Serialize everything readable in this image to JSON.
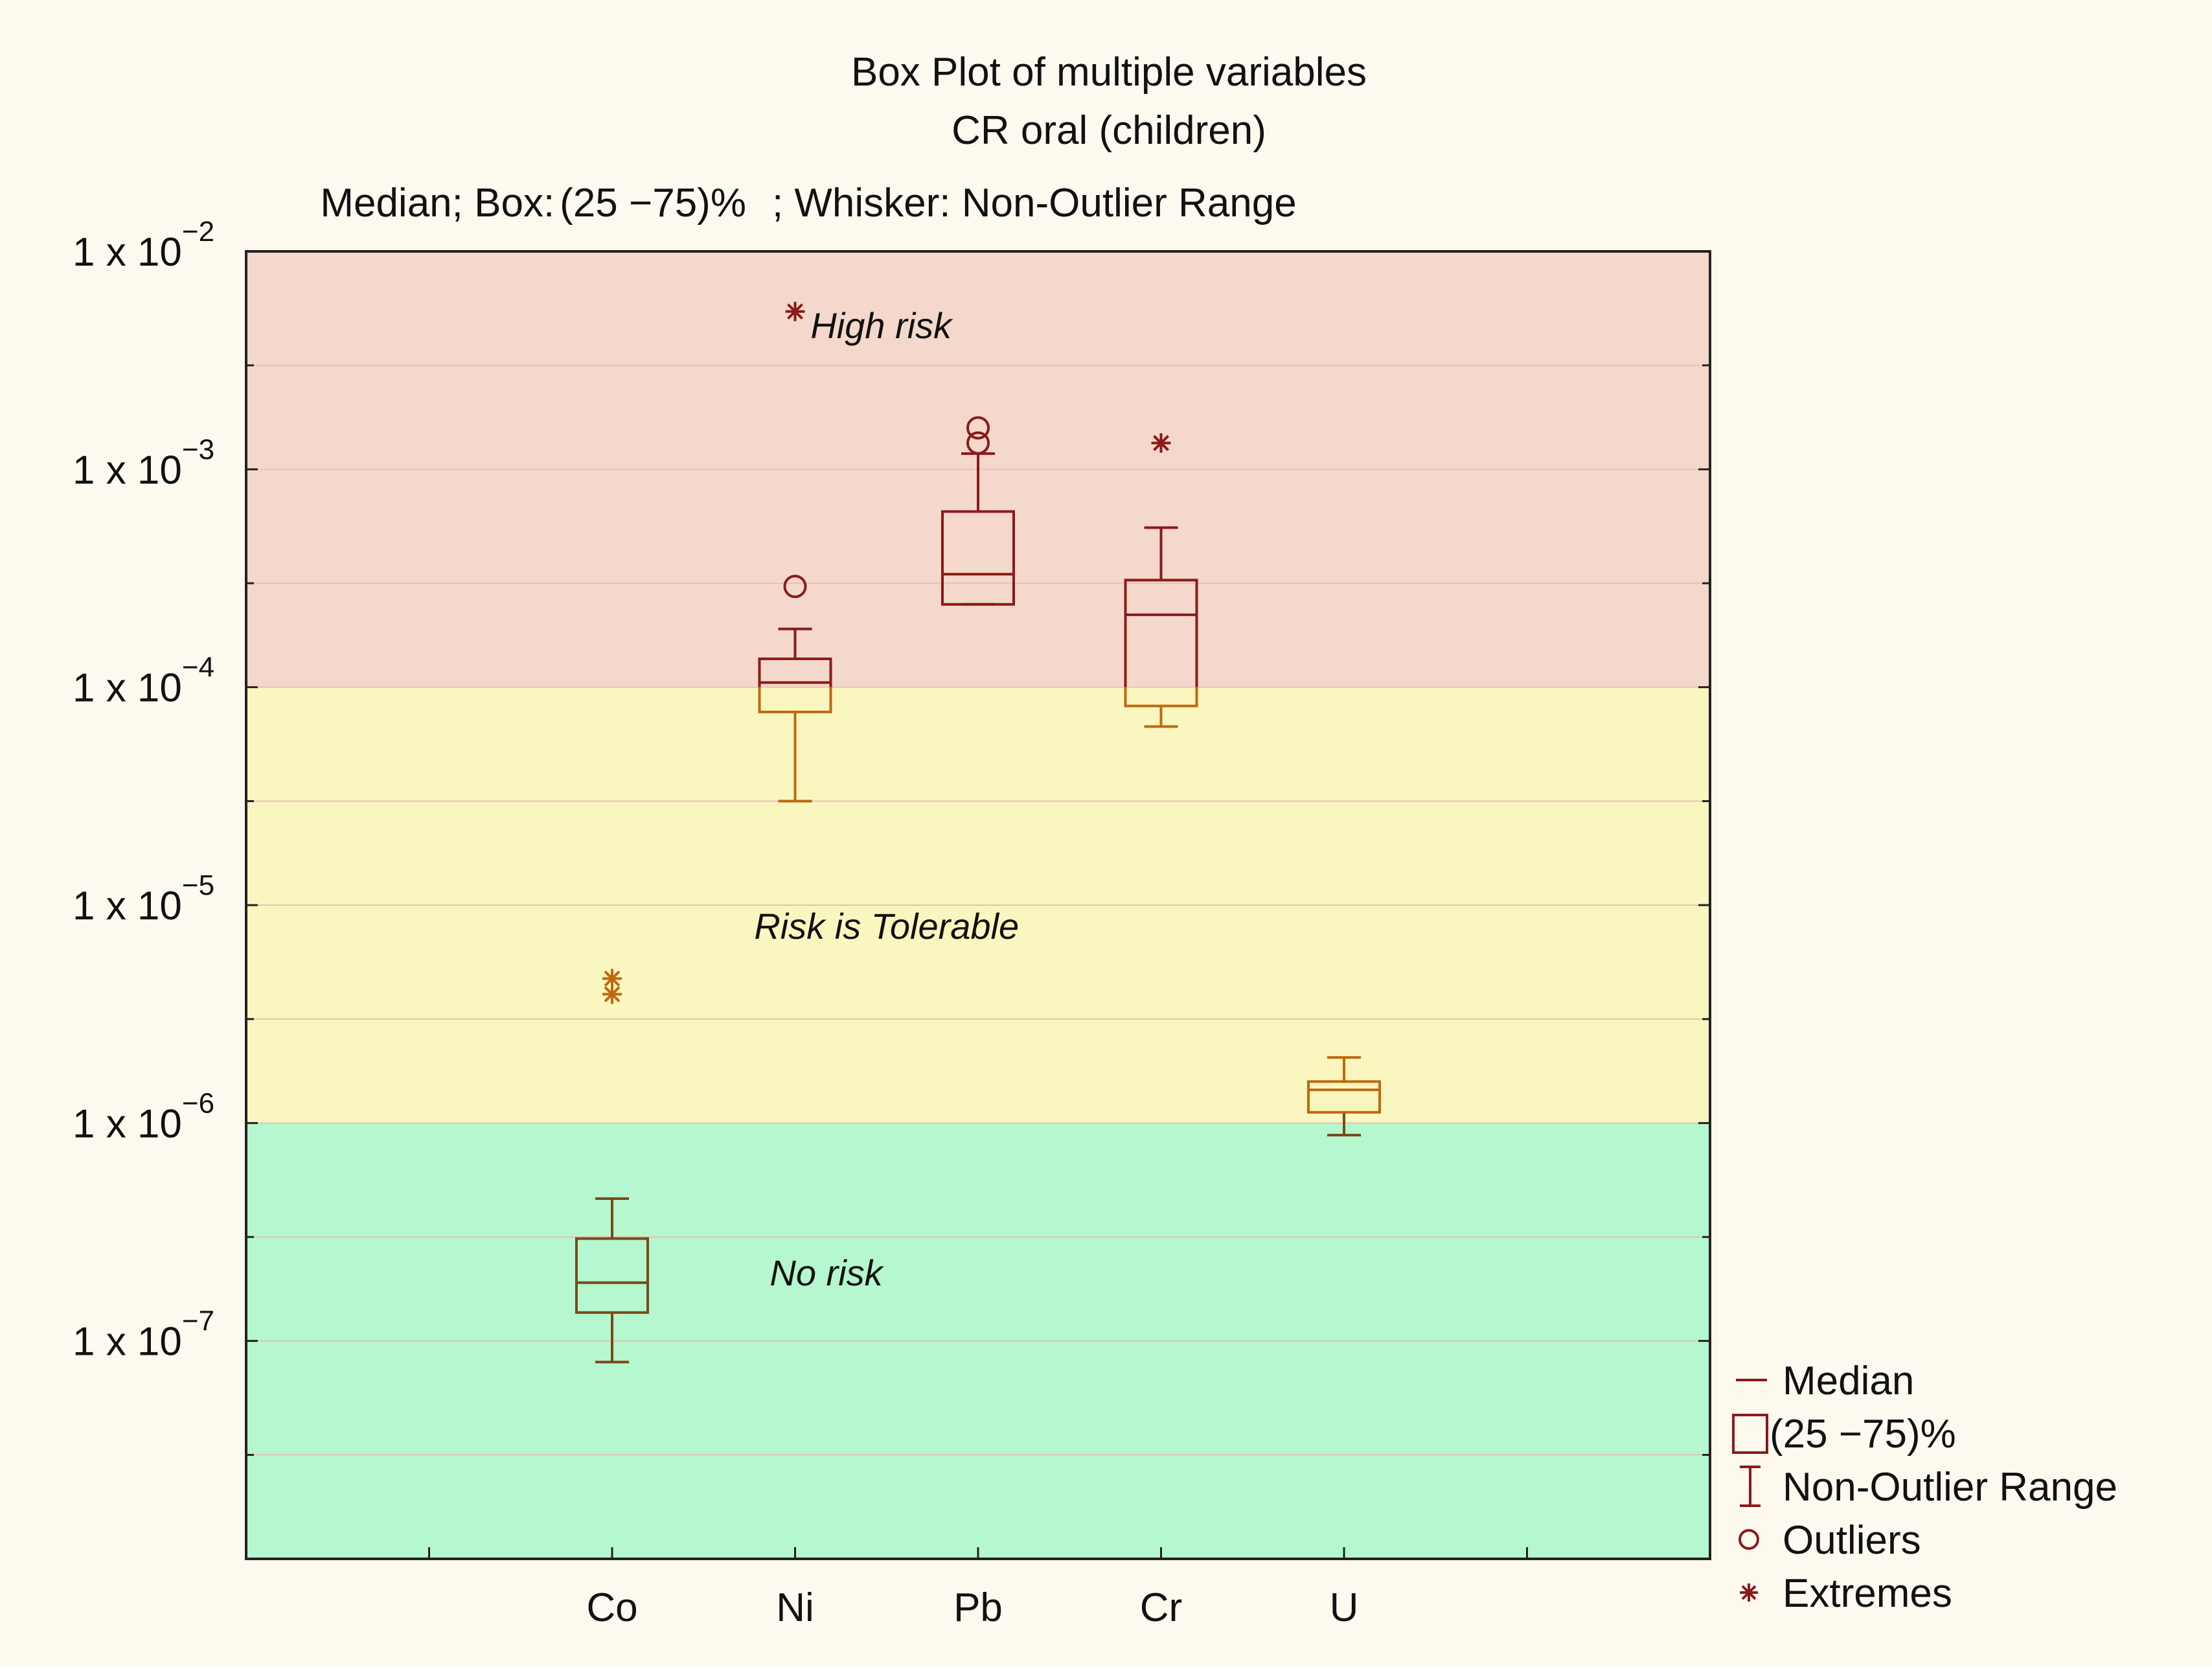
{
  "chart_data": {
    "type": "box",
    "title": "Box Plot of multiple variables",
    "subtitle": "CR oral (children)",
    "caption": {
      "median": "Median; Box:",
      "range": "(25 −75)%",
      "whisker": "; Whisker: Non-Outlier Range"
    },
    "categories": [
      "Co",
      "Ni",
      "Pb",
      "Cr",
      "U"
    ],
    "yscale": "log",
    "ylim": [
      1e-08,
      0.01
    ],
    "y_ticks": [
      {
        "value": 0.01,
        "base": "1 x 10",
        "exp": "−2"
      },
      {
        "value": 0.001,
        "base": "1 x 10",
        "exp": "−3"
      },
      {
        "value": 0.0001,
        "base": "1 x 10",
        "exp": "−4"
      },
      {
        "value": 1e-05,
        "base": "1 x 10",
        "exp": "−5"
      },
      {
        "value": 1e-06,
        "base": "1 x 10",
        "exp": "−6"
      },
      {
        "value": 1e-07,
        "base": "1 x 10",
        "exp": "−7"
      }
    ],
    "boxes": [
      {
        "name": "Co",
        "whisker_low": 8e-08,
        "q1": 1.35e-07,
        "median": 1.85e-07,
        "q3": 2.95e-07,
        "whisker_high": 4.5e-07,
        "outliers": [],
        "extremes": [
          4.6e-06,
          3.9e-06
        ]
      },
      {
        "name": "Ni",
        "whisker_low": 3e-05,
        "q1": 7.7e-05,
        "median": 0.000105,
        "q3": 0.000135,
        "whisker_high": 0.000185,
        "outliers": [
          0.00029
        ],
        "extremes": [
          0.0053
        ]
      },
      {
        "name": "Pb",
        "whisker_low": 0.00024,
        "q1": 0.00024,
        "median": 0.00033,
        "q3": 0.00064,
        "whisker_high": 0.00118,
        "outliers": [
          0.00155,
          0.00132
        ],
        "extremes": []
      },
      {
        "name": "Cr",
        "whisker_low": 6.6e-05,
        "q1": 8.2e-05,
        "median": 0.000215,
        "q3": 0.00031,
        "whisker_high": 0.00054,
        "outliers": [],
        "extremes": [
          0.00132
        ]
      },
      {
        "name": "U",
        "whisker_low": 8.8e-07,
        "q1": 1.12e-06,
        "median": 1.42e-06,
        "q3": 1.55e-06,
        "whisker_high": 2e-06,
        "outliers": [],
        "extremes": []
      }
    ],
    "risk_zones": [
      {
        "label": "High risk",
        "from": 0.0001,
        "to": 0.01,
        "color": "#f3d8cb",
        "label_y": 0.004,
        "label_x": 2.47
      },
      {
        "label": "Risk is Tolerable",
        "from": 1e-06,
        "to": 0.0001,
        "color": "#faf6c0",
        "label_y": 7e-06,
        "label_x": 2.5
      },
      {
        "label": "No risk",
        "from": 1e-08,
        "to": 1e-06,
        "color": "#b5f7ce",
        "label_y": 1.8e-07,
        "label_x": 2.17
      }
    ],
    "legend": {
      "position": "bottom-right",
      "items": [
        {
          "symbol": "median",
          "label": "Median"
        },
        {
          "symbol": "box",
          "label": "(25 −75)%"
        },
        {
          "symbol": "whisker",
          "label": "Non-Outlier Range"
        },
        {
          "symbol": "outlier",
          "label": "Outliers"
        },
        {
          "symbol": "extreme",
          "label": "Extremes"
        }
      ]
    },
    "colors": {
      "background": "#fdf9ef",
      "high": "#8b1a1a",
      "mid": "#c0680f",
      "low": "#7a4a1c",
      "legend": "#8b1a1a",
      "gridline": "#e4c4b3"
    }
  }
}
